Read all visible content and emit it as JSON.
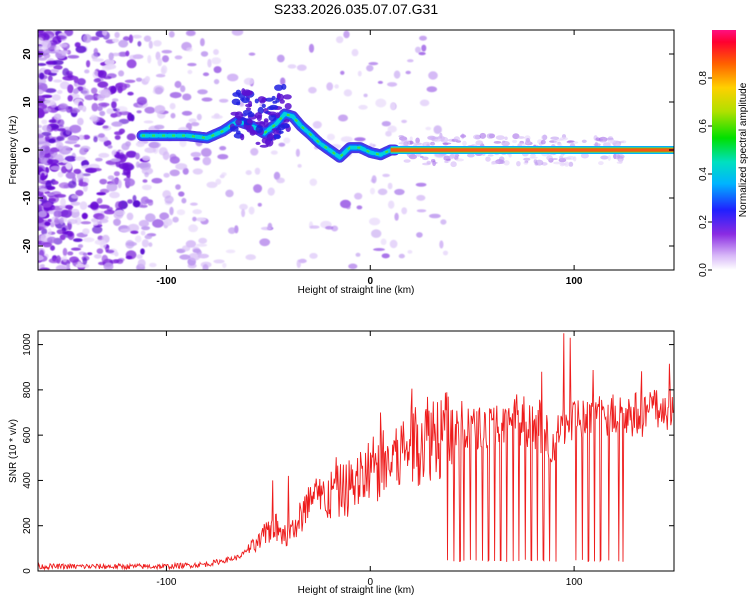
{
  "title": "S233.2026.035.07.07.G31",
  "chart_data": [
    {
      "type": "heatmap",
      "name": "spectrogram",
      "xlabel": "Height of straight line (km)",
      "ylabel": "Frequency (Hz)",
      "xlim": [
        -163,
        149
      ],
      "ylim": [
        -25,
        25
      ],
      "xticks": [
        -100,
        0,
        100
      ],
      "yticks": [
        -20,
        -10,
        0,
        10,
        20
      ],
      "colorbar": {
        "label": "Normalized spectral amplitude",
        "range": [
          0,
          1
        ],
        "ticks": [
          0.0,
          0.2,
          0.4,
          0.6,
          0.8
        ]
      },
      "ridge": {
        "description": "dominant frequency track",
        "points": [
          [
            -112,
            3
          ],
          [
            -100,
            3
          ],
          [
            -90,
            3
          ],
          [
            -80,
            2.5
          ],
          [
            -72,
            4
          ],
          [
            -65,
            6
          ],
          [
            -58,
            5
          ],
          [
            -52,
            3.5
          ],
          [
            -46,
            5.5
          ],
          [
            -42,
            7.5
          ],
          [
            -38,
            7
          ],
          [
            -34,
            5
          ],
          [
            -30,
            3.5
          ],
          [
            -25,
            1.5
          ],
          [
            -20,
            0
          ],
          [
            -15,
            -1.5
          ],
          [
            -10,
            0.5
          ],
          [
            -5,
            0.5
          ],
          [
            0,
            -0.5
          ],
          [
            5,
            -1
          ],
          [
            10,
            0
          ],
          [
            40,
            0
          ],
          [
            80,
            0
          ],
          [
            90,
            -0.5
          ],
          [
            95,
            0
          ],
          [
            149,
            0
          ]
        ]
      }
    },
    {
      "type": "line",
      "name": "snr",
      "xlabel": "Height of straight line (km)",
      "ylabel": "SNR (10 * v/v)",
      "xlim": [
        -163,
        149
      ],
      "ylim": [
        0,
        1060
      ],
      "xticks": [
        -100,
        0,
        100
      ],
      "yticks": [
        0,
        200,
        400,
        600,
        800,
        1000
      ],
      "color": "#ee1c1c",
      "envelope": [
        [
          -163,
          20
        ],
        [
          -100,
          20
        ],
        [
          -80,
          30
        ],
        [
          -65,
          60
        ],
        [
          -55,
          120
        ],
        [
          -48,
          200
        ],
        [
          -40,
          150
        ],
        [
          -30,
          300
        ],
        [
          -20,
          330
        ],
        [
          -10,
          370
        ],
        [
          0,
          440
        ],
        [
          10,
          480
        ],
        [
          20,
          560
        ],
        [
          30,
          610
        ],
        [
          40,
          620
        ],
        [
          50,
          630
        ],
        [
          60,
          640
        ],
        [
          70,
          650
        ],
        [
          80,
          640
        ],
        [
          90,
          560
        ],
        [
          95,
          650
        ],
        [
          100,
          680
        ],
        [
          110,
          680
        ],
        [
          120,
          690
        ],
        [
          130,
          690
        ],
        [
          149,
          720
        ]
      ],
      "spikes": [
        [
          -48,
          400
        ],
        [
          -40,
          420
        ],
        [
          5,
          700
        ],
        [
          95,
          1050
        ],
        [
          98,
          1030
        ],
        [
          72,
          780
        ],
        [
          84,
          880
        ],
        [
          101,
          800
        ],
        [
          76,
          870
        ],
        [
          62,
          730
        ]
      ],
      "dropouts_x": [
        38,
        41,
        44,
        46,
        49,
        52,
        55,
        58,
        61,
        64,
        67,
        70,
        73,
        76,
        79,
        82,
        85,
        88,
        91,
        101,
        104,
        107,
        110,
        113,
        117,
        122,
        124
      ],
      "dropout_level": 40
    }
  ]
}
